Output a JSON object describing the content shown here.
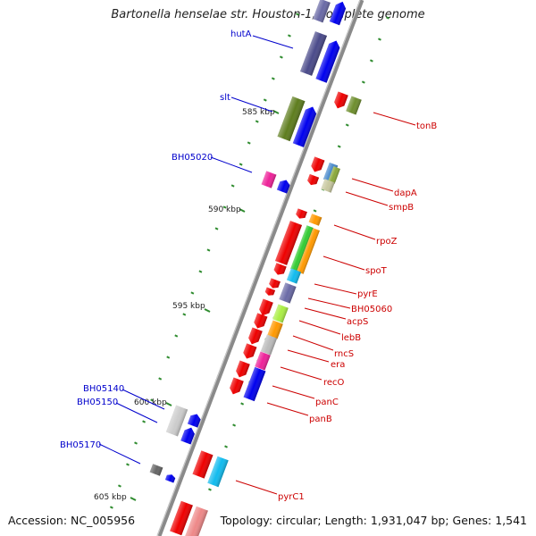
{
  "title": "Bartonella henselae str. Houston-1, complete genome",
  "footer": {
    "accession": "Accession: NC_005956",
    "topology": "Topology: circular; Length: 1,931,047 bp; Genes: 1,541"
  },
  "colors": {
    "backbone": "#8a8a8a",
    "tick": "#2e8b2e",
    "label_left": "#0000cc",
    "label_right": "#cc0000"
  },
  "kbp_labels": [
    "585 kbp",
    "590 kbp",
    "595 kbp",
    "600 kbp",
    "605 kbp"
  ],
  "genes_left": [
    "hutA",
    "slt",
    "BH05020",
    "BH05140",
    "BH05150",
    "BH05170"
  ],
  "genes_right": [
    "tonB",
    "dapA",
    "smpB",
    "rpoZ",
    "spoT",
    "pyrE",
    "BH05060",
    "acpS",
    "lebB",
    "rncS",
    "era",
    "recO",
    "panC",
    "panB",
    "pyrC1"
  ]
}
